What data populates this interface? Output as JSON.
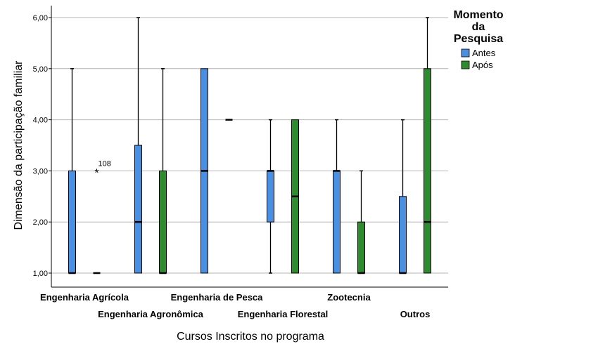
{
  "chart_data": {
    "type": "boxplot",
    "xlabel": "Cursos Inscritos no programa",
    "ylabel": "Dimensão da participação familiar",
    "ylim": [
      1,
      6
    ],
    "yticks": [
      1,
      2,
      3,
      4,
      5,
      6
    ],
    "ytick_labels": [
      "1,00",
      "2,00",
      "3,00",
      "4,00",
      "5,00",
      "6,00"
    ],
    "grid": "horizontal",
    "categories": [
      "Engenharia Agrícola",
      "Engenharia Agronômica",
      "Engenharia de Pesca",
      "Engenharia Florestal",
      "Zootecnia",
      "Outros"
    ],
    "legend": {
      "title_lines": [
        "Momento",
        "da",
        "Pesquisa"
      ],
      "placement": "right",
      "entries": [
        {
          "name": "Antes",
          "color": "#4a90e2"
        },
        {
          "name": "Após",
          "color": "#2e8b2e"
        }
      ]
    },
    "series": [
      {
        "name": "Antes",
        "color": "#4a90e2",
        "boxes": [
          {
            "min": 1,
            "q1": 1,
            "median": 1,
            "q3": 3,
            "max": 5
          },
          {
            "min": 1,
            "q1": 1,
            "median": 2,
            "q3": 3.5,
            "max": 6
          },
          {
            "min": 1,
            "q1": 1,
            "median": 3,
            "q3": 5,
            "max": 5
          },
          {
            "min": 1,
            "q1": 2,
            "median": 3,
            "q3": 3,
            "max": 4
          },
          {
            "min": 1,
            "q1": 1,
            "median": 3,
            "q3": 3,
            "max": 4
          },
          {
            "min": 1,
            "q1": 1,
            "median": 1,
            "q3": 2.5,
            "max": 4
          }
        ]
      },
      {
        "name": "Após",
        "color": "#2e8b2e",
        "boxes": [
          {
            "min": 1,
            "q1": 1,
            "median": 1,
            "q3": 1,
            "max": 1
          },
          {
            "min": 1,
            "q1": 1,
            "median": 1,
            "q3": 3,
            "max": 5
          },
          {
            "min": 4,
            "q1": 4,
            "median": 4,
            "q3": 4,
            "max": 4
          },
          {
            "min": 1,
            "q1": 1,
            "median": 2.5,
            "q3": 4,
            "max": 4
          },
          {
            "min": 1,
            "q1": 1,
            "median": 1,
            "q3": 2,
            "max": 3
          },
          {
            "min": 1,
            "q1": 1,
            "median": 2,
            "q3": 5,
            "max": 6
          }
        ]
      }
    ],
    "outliers": [
      {
        "series": "Após",
        "category": "Engenharia Agrícola",
        "value": 3,
        "label": "108"
      }
    ]
  }
}
